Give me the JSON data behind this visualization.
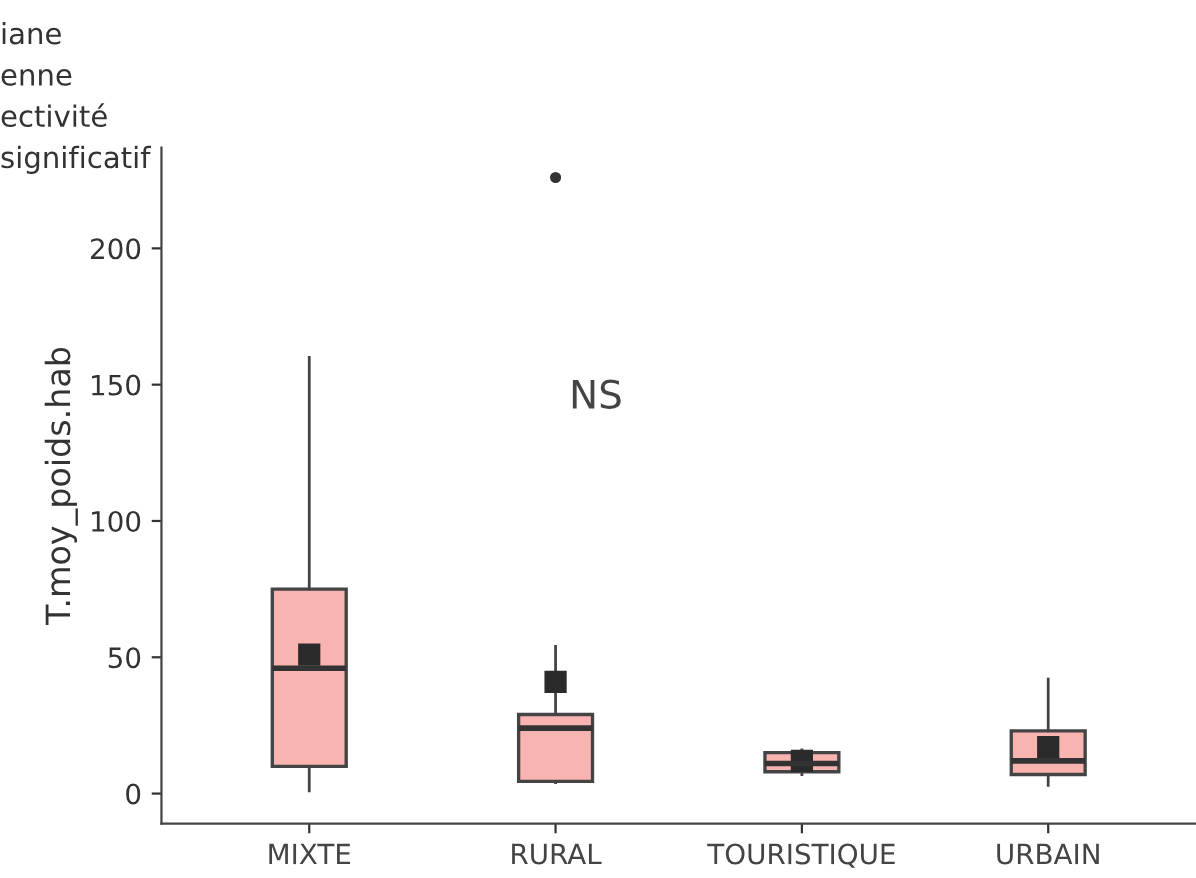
{
  "chart_data": {
    "type": "box",
    "ylabel": "T.moy_poids.hab",
    "categories": [
      "MIXTE",
      "RURAL",
      "TOURISTIQUE",
      "URBAIN"
    ],
    "color": "#f8b4b0",
    "boxes": [
      {
        "low": 1,
        "q1": 10,
        "median": 46,
        "q3": 75,
        "high": 160,
        "mean": 51
      },
      {
        "low": 4,
        "q1": 4.5,
        "median": 24,
        "q3": 29,
        "high": 54,
        "mean": 41,
        "outliers": [
          226
        ]
      },
      {
        "low": 7,
        "q1": 8,
        "median": 11,
        "q3": 15,
        "high": 16,
        "mean": 12
      },
      {
        "low": 3,
        "q1": 7,
        "median": 12,
        "q3": 23,
        "high": 42,
        "mean": 17
      }
    ],
    "ylim": [
      -11,
      237
    ],
    "yticks": [
      0,
      50,
      100,
      150,
      200
    ],
    "grid": false,
    "annotations": [
      "iane",
      "enne",
      "ectivité",
      "significatif",
      "NS"
    ]
  }
}
